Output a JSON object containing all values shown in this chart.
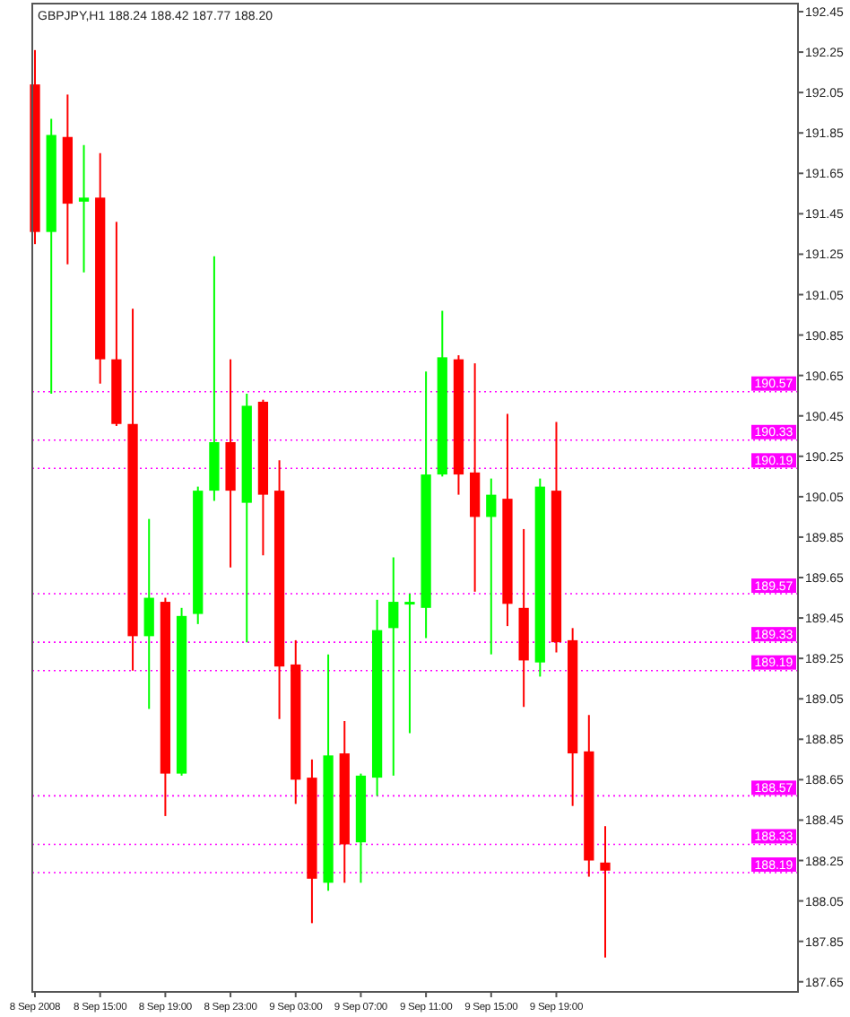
{
  "chart_data": {
    "type": "candlestick",
    "title": "GBPJPY,H1 188.24 188.42 187.77 188.20",
    "x": [
      "2008-09-08T11:00",
      "2008-09-08T12:00",
      "2008-09-08T13:00",
      "2008-09-08T14:00",
      "2008-09-08T15:00",
      "2008-09-08T16:00",
      "2008-09-08T17:00",
      "2008-09-08T18:00",
      "2008-09-08T19:00",
      "2008-09-08T20:00",
      "2008-09-08T21:00",
      "2008-09-08T22:00",
      "2008-09-08T23:00",
      "2008-09-09T00:00",
      "2008-09-09T01:00",
      "2008-09-09T02:00",
      "2008-09-09T03:00",
      "2008-09-09T04:00",
      "2008-09-09T05:00",
      "2008-09-09T06:00",
      "2008-09-09T07:00",
      "2008-09-09T08:00",
      "2008-09-09T09:00",
      "2008-09-09T10:00",
      "2008-09-09T11:00",
      "2008-09-09T12:00",
      "2008-09-09T13:00",
      "2008-09-09T14:00",
      "2008-09-09T15:00",
      "2008-09-09T16:00",
      "2008-09-09T17:00",
      "2008-09-09T18:00",
      "2008-09-09T19:00",
      "2008-09-09T20:00",
      "2008-09-09T21:00",
      "2008-09-09T22:00"
    ],
    "ohlc": [
      [
        192.09,
        192.26,
        191.3,
        191.36
      ],
      [
        191.36,
        191.92,
        190.56,
        191.84
      ],
      [
        191.83,
        192.04,
        191.2,
        191.5
      ],
      [
        191.51,
        191.79,
        191.16,
        191.53
      ],
      [
        191.53,
        191.75,
        190.61,
        190.73
      ],
      [
        190.73,
        191.41,
        190.4,
        190.41
      ],
      [
        190.41,
        190.98,
        189.19,
        189.36
      ],
      [
        189.36,
        189.94,
        189.0,
        189.55
      ],
      [
        189.53,
        189.55,
        188.47,
        188.68
      ],
      [
        188.68,
        189.5,
        188.67,
        189.46
      ],
      [
        189.47,
        190.1,
        189.42,
        190.08
      ],
      [
        190.08,
        191.24,
        190.03,
        190.32
      ],
      [
        190.32,
        190.73,
        189.7,
        190.08
      ],
      [
        190.02,
        190.56,
        189.33,
        190.5
      ],
      [
        190.52,
        190.53,
        189.76,
        190.06
      ],
      [
        190.08,
        190.23,
        188.95,
        189.21
      ],
      [
        189.22,
        189.34,
        188.53,
        188.65
      ],
      [
        188.66,
        188.75,
        187.94,
        188.16
      ],
      [
        188.14,
        189.27,
        188.1,
        188.77
      ],
      [
        188.78,
        188.94,
        188.14,
        188.33
      ],
      [
        188.34,
        188.68,
        188.14,
        188.67
      ],
      [
        188.66,
        189.54,
        188.57,
        189.39
      ],
      [
        189.4,
        189.75,
        188.67,
        189.53
      ],
      [
        189.52,
        189.57,
        188.88,
        189.53
      ],
      [
        189.5,
        190.67,
        189.35,
        190.16
      ],
      [
        190.16,
        190.97,
        190.15,
        190.74
      ],
      [
        190.73,
        190.75,
        190.06,
        190.16
      ],
      [
        190.17,
        190.71,
        189.58,
        189.95
      ],
      [
        189.95,
        190.14,
        189.27,
        190.06
      ],
      [
        190.04,
        190.46,
        189.41,
        189.52
      ],
      [
        189.5,
        189.89,
        189.01,
        189.24
      ],
      [
        189.23,
        190.14,
        189.16,
        190.1
      ],
      [
        190.08,
        190.42,
        189.28,
        189.33
      ],
      [
        189.34,
        189.4,
        188.52,
        188.78
      ],
      [
        188.79,
        188.97,
        188.17,
        188.25
      ],
      [
        188.24,
        188.42,
        187.77,
        188.2
      ]
    ],
    "colors": [
      "#ff0000",
      "#00ff00",
      "#ff0000",
      "#00ff00",
      "#ff0000",
      "#ff0000",
      "#ff0000",
      "#00ff00",
      "#ff0000",
      "#00ff00",
      "#00ff00",
      "#00ff00",
      "#ff0000",
      "#00ff00",
      "#ff0000",
      "#ff0000",
      "#ff0000",
      "#ff0000",
      "#00ff00",
      "#ff0000",
      "#00ff00",
      "#00ff00",
      "#00ff00",
      "#00ff00",
      "#00ff00",
      "#00ff00",
      "#ff0000",
      "#ff0000",
      "#00ff00",
      "#ff0000",
      "#ff0000",
      "#00ff00",
      "#ff0000",
      "#ff0000",
      "#ff0000",
      "#ff0000"
    ],
    "xlim": [
      "2008-09-08T10:50",
      "2008-09-10T09:50"
    ],
    "xticks": [
      {
        "value": "2008-09-08T11:00",
        "label": "8 Sep 2008"
      },
      {
        "value": "2008-09-08T15:00",
        "label": "8 Sep 15:00"
      },
      {
        "value": "2008-09-08T19:00",
        "label": "8 Sep 19:00"
      },
      {
        "value": "2008-09-08T23:00",
        "label": "8 Sep 23:00"
      },
      {
        "value": "2008-09-09T03:00",
        "label": "9 Sep 03:00"
      },
      {
        "value": "2008-09-09T07:00",
        "label": "9 Sep 07:00"
      },
      {
        "value": "2008-09-09T11:00",
        "label": "9 Sep 11:00"
      },
      {
        "value": "2008-09-09T15:00",
        "label": "9 Sep 15:00"
      },
      {
        "value": "2008-09-09T19:00",
        "label": "9 Sep 19:00"
      }
    ],
    "ylim": [
      187.6,
      192.49
    ],
    "yticks": [
      192.45,
      192.25,
      192.05,
      191.85,
      191.65,
      191.45,
      191.25,
      191.05,
      190.85,
      190.65,
      190.45,
      190.25,
      190.05,
      189.85,
      189.65,
      189.45,
      189.25,
      189.05,
      188.85,
      188.65,
      188.45,
      188.25,
      188.05,
      187.85,
      187.65
    ],
    "ref_lines": [
      {
        "axis": "y",
        "value": 190.57,
        "label": "190.57",
        "color": "#ff00ff",
        "line_style": "dotted"
      },
      {
        "axis": "y",
        "value": 190.33,
        "label": "190.33",
        "color": "#ff00ff",
        "line_style": "dotted"
      },
      {
        "axis": "y",
        "value": 190.19,
        "label": "190.19",
        "color": "#ff00ff",
        "line_style": "dotted"
      },
      {
        "axis": "y",
        "value": 189.57,
        "label": "189.57",
        "color": "#ff00ff",
        "line_style": "dotted"
      },
      {
        "axis": "y",
        "value": 189.33,
        "label": "189.33",
        "color": "#ff00ff",
        "line_style": "dotted"
      },
      {
        "axis": "y",
        "value": 189.19,
        "label": "189.19",
        "color": "#ff00ff",
        "line_style": "dotted"
      },
      {
        "axis": "y",
        "value": 188.57,
        "label": "188.57",
        "color": "#ff00ff",
        "line_style": "dotted"
      },
      {
        "axis": "y",
        "value": 188.33,
        "label": "188.33",
        "color": "#ff00ff",
        "line_style": "dotted"
      },
      {
        "axis": "y",
        "value": 188.19,
        "label": "188.19",
        "color": "#ff00ff",
        "line_style": "dotted"
      }
    ],
    "grid": false
  }
}
